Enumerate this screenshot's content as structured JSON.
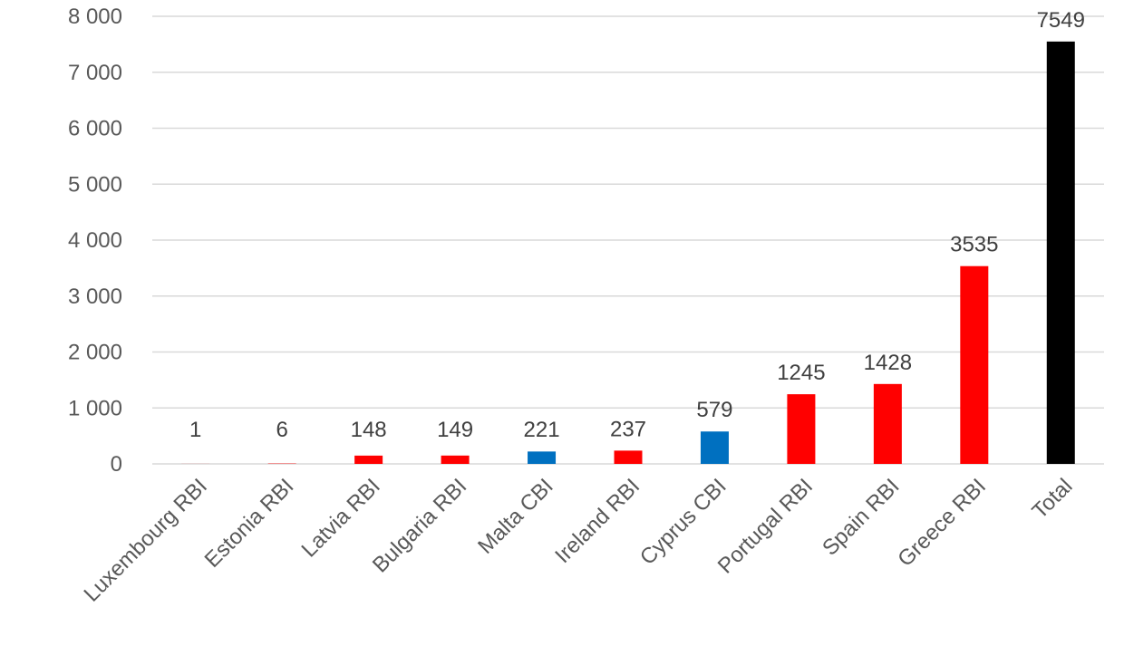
{
  "chart_data": {
    "type": "bar",
    "title": "",
    "xlabel": "",
    "ylabel": "",
    "ylim": [
      0,
      8000
    ],
    "y_ticks": [
      0,
      1000,
      2000,
      3000,
      4000,
      5000,
      6000,
      7000,
      8000
    ],
    "y_tick_labels": [
      "0",
      "1 000",
      "2 000",
      "3 000",
      "4 000",
      "5 000",
      "6 000",
      "7 000",
      "8 000"
    ],
    "grid": true,
    "legend": "none",
    "categories": [
      "Luxembourg RBI",
      "Estonia RBI",
      "Latvia RBI",
      "Bulgaria RBI",
      "Malta CBI",
      "Ireland RBI",
      "Cyprus CBI",
      "Portugal RBI",
      "Spain RBI",
      "Greece RBI",
      "Total"
    ],
    "values": [
      1,
      6,
      148,
      149,
      221,
      237,
      579,
      1245,
      1428,
      3535,
      7549
    ],
    "data_labels": [
      "1",
      "6",
      "148",
      "149",
      "221",
      "237",
      "579",
      "1245",
      "1428",
      "3535",
      "7549"
    ],
    "bar_colors": [
      "#ff0000",
      "#ff0000",
      "#ff0000",
      "#ff0000",
      "#0070c0",
      "#ff0000",
      "#0070c0",
      "#ff0000",
      "#ff0000",
      "#ff0000",
      "#000000"
    ]
  }
}
